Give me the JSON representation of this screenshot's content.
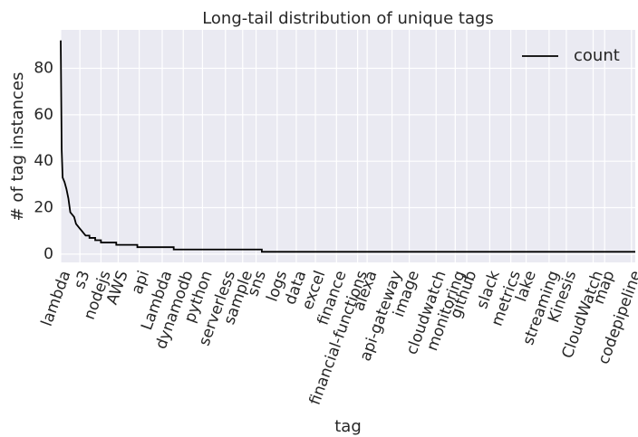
{
  "chart_data": {
    "type": "line",
    "title": "Long-tail distribution of unique tags",
    "x_label": "tag",
    "y_label": "# of tag instances",
    "x": [
      0,
      0.5,
      1,
      2,
      3,
      4,
      5,
      6,
      7,
      8,
      9,
      10,
      11,
      12,
      13,
      15,
      15,
      18,
      18,
      21,
      21,
      29,
      29,
      40,
      40,
      59,
      59,
      105,
      105,
      300
    ],
    "series": [
      {
        "name": "count",
        "color": "#000000",
        "values": [
          92,
          45,
          33,
          31,
          28,
          24,
          18,
          17,
          16,
          13,
          12,
          11,
          10,
          9,
          8,
          8,
          7,
          7,
          6,
          6,
          5,
          5,
          4,
          4,
          3,
          3,
          2,
          2,
          1,
          1
        ]
      }
    ],
    "xlim": [
      0,
      300
    ],
    "ylim": [
      -3.55,
      96.55
    ],
    "yticks": [
      0,
      20,
      40,
      60,
      80
    ],
    "xticks": [
      {
        "value": 0,
        "label": "lambda"
      },
      {
        "value": 10,
        "label": "s3"
      },
      {
        "value": 21,
        "label": "nodejs"
      },
      {
        "value": 30,
        "label": "AWS"
      },
      {
        "value": 41,
        "label": "api"
      },
      {
        "value": 53,
        "label": "Lambda"
      },
      {
        "value": 64,
        "label": "dynamodb"
      },
      {
        "value": 74,
        "label": "python"
      },
      {
        "value": 86,
        "label": "serverless"
      },
      {
        "value": 95,
        "label": "sample"
      },
      {
        "value": 102,
        "label": "sns"
      },
      {
        "value": 113,
        "label": "logs"
      },
      {
        "value": 123,
        "label": "data"
      },
      {
        "value": 133,
        "label": "excel"
      },
      {
        "value": 144,
        "label": "finance"
      },
      {
        "value": 155,
        "label": "financial-functions"
      },
      {
        "value": 160,
        "label": "alexa"
      },
      {
        "value": 173,
        "label": "api-gateway"
      },
      {
        "value": 182,
        "label": "image"
      },
      {
        "value": 196,
        "label": "cloudwatch"
      },
      {
        "value": 206,
        "label": "monitoring"
      },
      {
        "value": 212,
        "label": "github"
      },
      {
        "value": 224,
        "label": "slack"
      },
      {
        "value": 235,
        "label": "metrics"
      },
      {
        "value": 243,
        "label": "lake"
      },
      {
        "value": 255,
        "label": "streaming"
      },
      {
        "value": 264,
        "label": "Kinesis"
      },
      {
        "value": 278,
        "label": "CloudWatch"
      },
      {
        "value": 284,
        "label": "map"
      },
      {
        "value": 298,
        "label": "codepipeline"
      }
    ],
    "grid": true,
    "legend": "upper right"
  }
}
